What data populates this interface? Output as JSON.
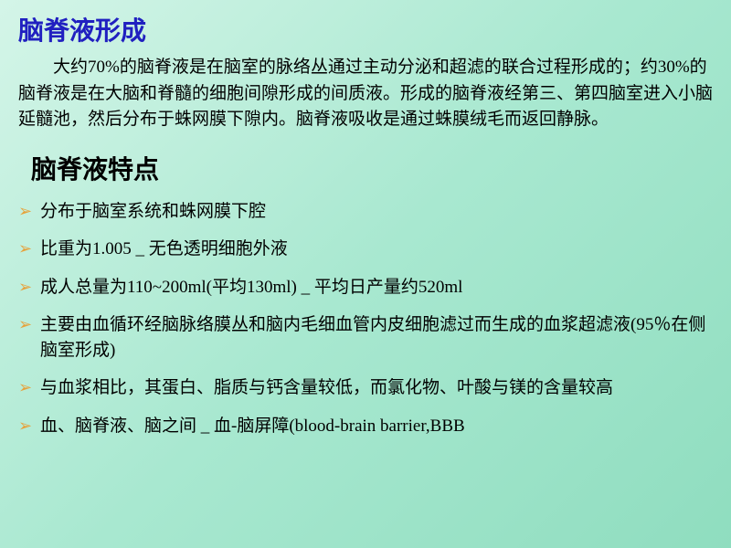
{
  "title1": "脑脊液形成",
  "paragraph": "大约70%的脑脊液是在脑室的脉络丛通过主动分泌和超滤的联合过程形成的；约30%的脑脊液是在大脑和脊髓的细胞间隙形成的间质液。形成的脑脊液经第三、第四脑室进入小脑延髓池，然后分布于蛛网膜下隙内。脑脊液吸收是通过蛛膜绒毛而返回静脉。",
  "title2": "脑脊液特点",
  "bullets": [
    "分布于脑室系统和蛛网膜下腔",
    "比重为1.005 _ 无色透明细胞外液",
    "成人总量为110~200ml(平均130ml) _ 平均日产量约520ml",
    "主要由血循环经脑脉络膜丛和脑内毛细血管内皮细胞滤过而生成的血浆超滤液(95％在侧脑室形成)",
    "与血浆相比，其蛋白、脂质与钙含量较低，而氯化物、叶酸与镁的含量较高",
    "血、脑脊液、脑之间 _ 血-脑屏障(blood-brain barrier,BBB"
  ],
  "colors": {
    "title1_color": "#2020c0",
    "bullet_marker_color": "#e6a23c",
    "text_color": "#000000",
    "bg_gradient_start": "#d4f5e8",
    "bg_gradient_mid": "#a8e8d0",
    "bg_gradient_end": "#8fddbf"
  },
  "typography": {
    "title_fontsize": 28,
    "body_fontsize": 19,
    "font_family": "SimSun"
  }
}
